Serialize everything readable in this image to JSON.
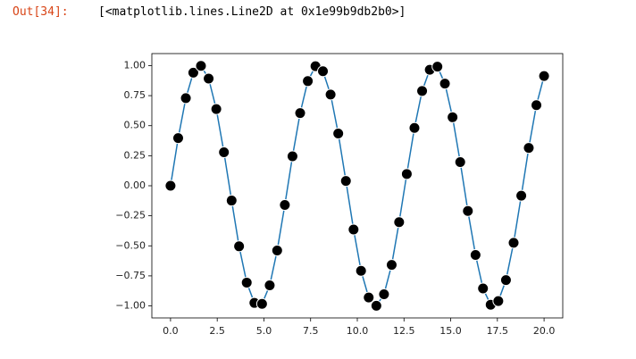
{
  "prompt": "Out[34]:",
  "output": "[<matplotlib.lines.Line2D at 0x1e99b9db2b0>]",
  "chart_data": {
    "type": "line",
    "x": [
      0,
      0.41,
      0.82,
      1.22,
      1.63,
      2.04,
      2.45,
      2.86,
      3.27,
      3.67,
      4.08,
      4.49,
      4.9,
      5.31,
      5.71,
      6.12,
      6.53,
      6.94,
      7.35,
      7.76,
      8.16,
      8.57,
      8.98,
      9.39,
      9.8,
      10.2,
      10.61,
      11.02,
      11.43,
      11.84,
      12.24,
      12.65,
      13.06,
      13.47,
      13.88,
      14.29,
      14.69,
      15.1,
      15.51,
      15.92,
      16.33,
      16.73,
      17.14,
      17.55,
      17.96,
      18.37,
      18.78,
      19.18,
      19.59,
      20
    ],
    "series": [
      {
        "color": "#1f77b4",
        "marker_color": "#000000",
        "values": [
          0,
          0.397,
          0.729,
          0.941,
          0.998,
          0.892,
          0.638,
          0.279,
          -0.123,
          -0.504,
          -0.806,
          -0.975,
          -0.983,
          -0.829,
          -0.539,
          -0.16,
          0.245,
          0.605,
          0.871,
          0.995,
          0.953,
          0.759,
          0.435,
          0.04,
          -0.364,
          -0.708,
          -0.93,
          -0.999,
          -0.903,
          -0.659,
          -0.303,
          0.098,
          0.481,
          0.789,
          0.965,
          0.991,
          0.85,
          0.57,
          0.197,
          -0.21,
          -0.576,
          -0.855,
          -0.99,
          -0.96,
          -0.785,
          -0.475,
          -0.083,
          0.315,
          0.671,
          0.913
        ]
      }
    ],
    "xlim": [
      -1,
      21
    ],
    "ylim": [
      -1.1,
      1.1
    ],
    "xticks": [
      {
        "value": 0,
        "label": "0.0"
      },
      {
        "value": 2.5,
        "label": "2.5"
      },
      {
        "value": 5,
        "label": "5.0"
      },
      {
        "value": 7.5,
        "label": "7.5"
      },
      {
        "value": 10,
        "label": "10.0"
      },
      {
        "value": 12.5,
        "label": "12.5"
      },
      {
        "value": 15,
        "label": "15.0"
      },
      {
        "value": 17.5,
        "label": "17.5"
      },
      {
        "value": 20,
        "label": "20.0"
      }
    ],
    "yticks": [
      {
        "value": 1,
        "label": "1.00"
      },
      {
        "value": 0.75,
        "label": "0.75"
      },
      {
        "value": 0.5,
        "label": "0.50"
      },
      {
        "value": 0.25,
        "label": "0.25"
      },
      {
        "value": 0,
        "label": "0.00"
      },
      {
        "value": -0.25,
        "label": "−0.25"
      },
      {
        "value": -0.5,
        "label": "−0.50"
      },
      {
        "value": -0.75,
        "label": "−0.75"
      },
      {
        "value": -1,
        "label": "−1.00"
      }
    ]
  }
}
